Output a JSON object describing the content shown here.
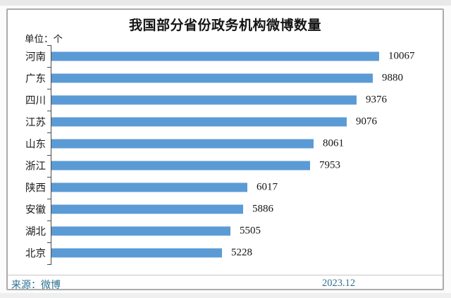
{
  "header": {
    "title": "我国部分省份政务机构微博数量",
    "unit_label": "单位：个"
  },
  "chart_data": {
    "type": "bar",
    "orientation": "horizontal",
    "title": "我国部分省份政务机构微博数量",
    "unit": "个",
    "categories": [
      "河南",
      "广东",
      "四川",
      "江苏",
      "山东",
      "浙江",
      "陕西",
      "安徽",
      "湖北",
      "北京"
    ],
    "values": [
      10067,
      9880,
      9376,
      9076,
      8061,
      7953,
      6017,
      5886,
      5505,
      5228
    ],
    "value_labels_shown": true,
    "xlim": [
      0,
      12000
    ],
    "grid": false,
    "legend": "none",
    "bar_color": "#5b9bd5",
    "axis_color": "#4a4a4a"
  },
  "footer": {
    "source_label": "来源：微博",
    "date": "2023.12",
    "text_color": "#2d7191"
  }
}
